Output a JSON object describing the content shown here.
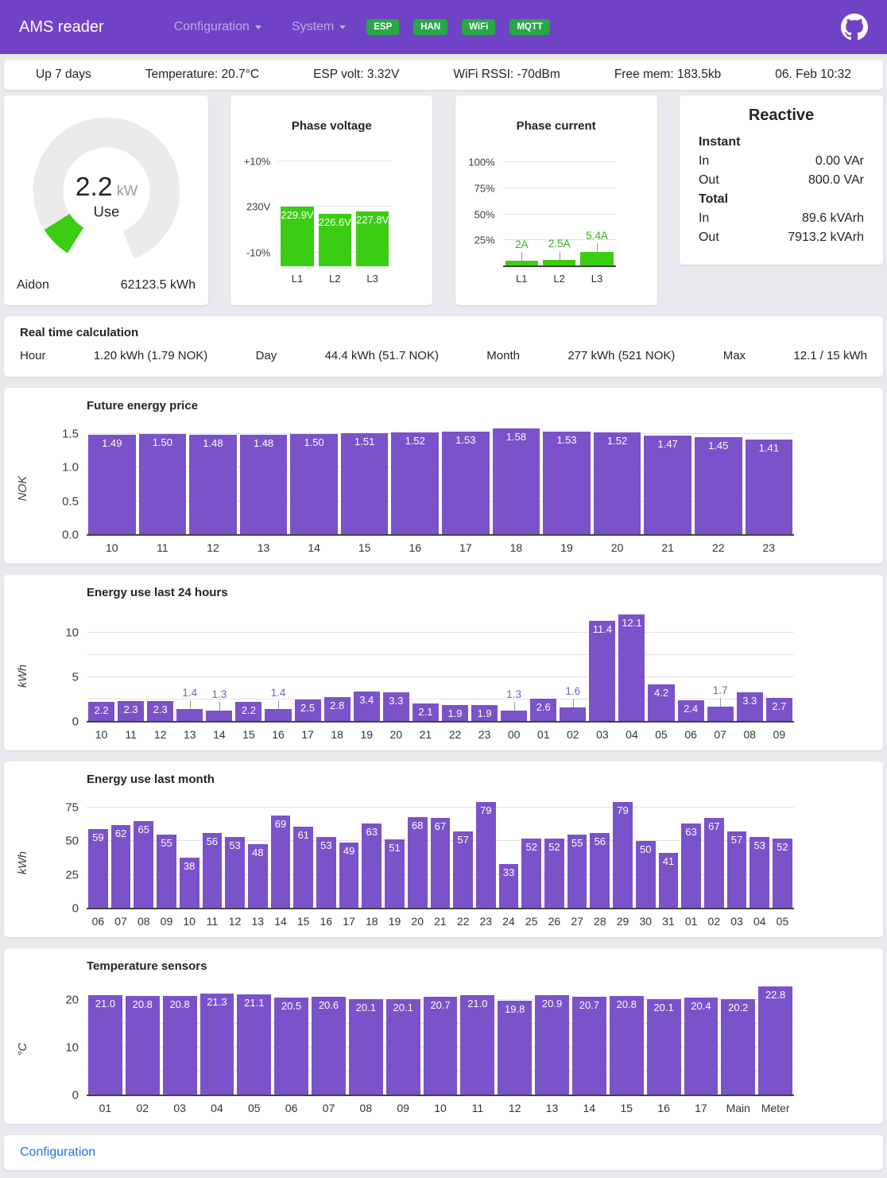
{
  "colors": {
    "header_purple": "#7042c6",
    "bar_purple": "#7a52c9",
    "bar_green": "#3bcd12",
    "badge_green": "#28a745",
    "link_blue": "#1e6ff5",
    "gauge_track": "#ebebeb",
    "label_above_purple": "#6e66b8",
    "label_above_green": "#2db315"
  },
  "header": {
    "title": "AMS reader",
    "nav": [
      {
        "label": "Configuration"
      },
      {
        "label": "System"
      }
    ],
    "badges": [
      {
        "label": "ESP"
      },
      {
        "label": "HAN"
      },
      {
        "label": "WiFi"
      },
      {
        "label": "MQTT"
      }
    ]
  },
  "status_bar": {
    "uptime": "Up 7 days",
    "temperature": "Temperature: 20.7°C",
    "esp_volt": "ESP volt: 3.32V",
    "wifi_rssi": "WiFi RSSI: -70dBm",
    "free_mem": "Free mem: 183.5kb",
    "datetime": "06. Feb 10:32"
  },
  "gauge": {
    "value": "2.2",
    "unit": "kW",
    "label": "Use",
    "meter": "Aidon",
    "total": "62123.5 kWh"
  },
  "reactive": {
    "title": "Reactive",
    "sections": [
      {
        "heading": "Instant",
        "rows": [
          {
            "label": "In",
            "value": "0.00 VAr"
          },
          {
            "label": "Out",
            "value": "800.0 VAr"
          }
        ]
      },
      {
        "heading": "Total",
        "rows": [
          {
            "label": "In",
            "value": "89.6 kVArh"
          },
          {
            "label": "Out",
            "value": "7913.2 kVArh"
          }
        ]
      }
    ]
  },
  "realtime": {
    "title": "Real time calculation",
    "items": [
      {
        "label": "Hour",
        "value": "1.20 kWh (1.79 NOK)"
      },
      {
        "label": "Day",
        "value": "44.4 kWh (51.7 NOK)"
      },
      {
        "label": "Month",
        "value": "277 kWh (521 NOK)"
      },
      {
        "label": "Max",
        "value": "12.1 / 15 kWh"
      }
    ]
  },
  "chart_data": [
    {
      "id": "voltage",
      "type": "bar",
      "title": "Phase voltage",
      "ylabel": "",
      "categories": [
        "L1",
        "L2",
        "L3"
      ],
      "values": [
        229.9,
        226.6,
        227.8
      ],
      "bar_labels": [
        "229.9V",
        "226.6V",
        "227.8V"
      ],
      "ylim": [
        200,
        256
      ],
      "yticks": [
        {
          "v": 253,
          "label": "+10%"
        },
        {
          "v": 230,
          "label": "230V"
        },
        {
          "v": 207,
          "label": "-10%"
        }
      ],
      "gridlines": [
        253,
        230,
        207
      ],
      "bottom_axis": false,
      "color": "bar_green",
      "label_mode": "inside"
    },
    {
      "id": "current",
      "type": "bar",
      "title": "Phase current",
      "ylabel": "",
      "categories": [
        "L1",
        "L2",
        "L3"
      ],
      "values": [
        2,
        2.5,
        5.4
      ],
      "bar_labels": [
        "2A",
        "2.5A",
        "5.4A"
      ],
      "ylim": [
        0,
        107
      ],
      "bar_display": [
        5,
        6.3,
        13.5
      ],
      "yticks": [
        {
          "v": 100,
          "label": "100%"
        },
        {
          "v": 75,
          "label": "75%"
        },
        {
          "v": 50,
          "label": "50%"
        },
        {
          "v": 25,
          "label": "25%"
        }
      ],
      "gridlines": [
        100,
        75,
        50,
        25
      ],
      "bottom_axis": true,
      "color": "bar_green",
      "label_mode": "above",
      "label_above_color": "label_above_green"
    },
    {
      "id": "price",
      "type": "bar",
      "title": "Future energy price",
      "ylabel": "NOK",
      "categories": [
        "10",
        "11",
        "12",
        "13",
        "14",
        "15",
        "16",
        "17",
        "18",
        "19",
        "20",
        "21",
        "22",
        "23"
      ],
      "values": [
        1.49,
        1.5,
        1.48,
        1.48,
        1.5,
        1.51,
        1.52,
        1.53,
        1.58,
        1.53,
        1.52,
        1.47,
        1.45,
        1.41
      ],
      "bar_labels": [
        "1.49",
        "1.50",
        "1.48",
        "1.48",
        "1.50",
        "1.51",
        "1.52",
        "1.53",
        "1.58",
        "1.53",
        "1.52",
        "1.47",
        "1.45",
        "1.41"
      ],
      "ylim": [
        0,
        1.65
      ],
      "yticks": [
        {
          "v": 0,
          "label": "0.0"
        },
        {
          "v": 0.5,
          "label": "0.5"
        },
        {
          "v": 1.0,
          "label": "1.0"
        },
        {
          "v": 1.5,
          "label": "1.5"
        }
      ],
      "gridlines": [
        0.5,
        1.0,
        1.5
      ],
      "bottom_axis": true,
      "color": "bar_purple",
      "label_mode": "inside"
    },
    {
      "id": "last24",
      "type": "bar",
      "title": "Energy use last 24 hours",
      "ylabel": "kWh",
      "categories": [
        "10",
        "11",
        "12",
        "13",
        "14",
        "15",
        "16",
        "17",
        "18",
        "19",
        "20",
        "21",
        "22",
        "23",
        "00",
        "01",
        "02",
        "03",
        "04",
        "05",
        "06",
        "07",
        "08",
        "09"
      ],
      "values": [
        2.2,
        2.3,
        2.3,
        1.4,
        1.3,
        2.2,
        1.4,
        2.5,
        2.8,
        3.4,
        3.3,
        2.1,
        1.9,
        1.9,
        1.3,
        2.6,
        1.6,
        11.4,
        12.1,
        4.2,
        2.4,
        1.7,
        3.3,
        2.7
      ],
      "bar_labels": [
        "2.2",
        "2.3",
        "2.3",
        "1.4",
        "1.3",
        "2.2",
        "1.4",
        "2.5",
        "2.8",
        "3.4",
        "3.3",
        "2.1",
        "1.9",
        "1.9",
        "1.3",
        "2.6",
        "1.6",
        "11.4",
        "12.1",
        "4.2",
        "2.4",
        "1.7",
        "3.3",
        "2.7"
      ],
      "ylim": [
        0,
        12.55
      ],
      "yticks": [
        {
          "v": 0,
          "label": "0"
        },
        {
          "v": 5,
          "label": "5"
        },
        {
          "v": 10,
          "label": "10"
        }
      ],
      "gridlines": [
        2.5,
        5,
        7.5,
        10
      ],
      "bottom_axis": true,
      "color": "bar_purple",
      "label_mode": "auto",
      "label_inside_min": 1.9
    },
    {
      "id": "month",
      "type": "bar",
      "title": "Energy use last month",
      "ylabel": "kWh",
      "categories": [
        "06",
        "07",
        "08",
        "09",
        "10",
        "11",
        "12",
        "13",
        "14",
        "15",
        "16",
        "17",
        "18",
        "19",
        "20",
        "21",
        "22",
        "23",
        "24",
        "25",
        "26",
        "27",
        "28",
        "29",
        "30",
        "31",
        "01",
        "02",
        "03",
        "04",
        "05"
      ],
      "values": [
        59,
        62,
        65,
        55,
        38,
        56,
        53,
        48,
        69,
        61,
        53,
        49,
        63,
        51,
        68,
        67,
        57,
        79,
        33,
        52,
        52,
        55,
        56,
        79,
        50,
        41,
        63,
        67,
        57,
        53,
        52
      ],
      "bar_labels": [
        "59",
        "62",
        "65",
        "55",
        "38",
        "56",
        "53",
        "48",
        "69",
        "61",
        "53",
        "49",
        "63",
        "51",
        "68",
        "67",
        "57",
        "79",
        "33",
        "52",
        "52",
        "55",
        "56",
        "79",
        "50",
        "41",
        "63",
        "67",
        "57",
        "53",
        "52"
      ],
      "ylim": [
        0,
        82.5
      ],
      "yticks": [
        {
          "v": 0,
          "label": "0"
        },
        {
          "v": 25,
          "label": "25"
        },
        {
          "v": 50,
          "label": "50"
        },
        {
          "v": 75,
          "label": "75"
        }
      ],
      "gridlines": [
        25,
        50,
        75
      ],
      "bottom_axis": true,
      "color": "bar_purple",
      "label_mode": "inside"
    },
    {
      "id": "temps",
      "type": "bar",
      "title": "Temperature sensors",
      "ylabel": "°C",
      "categories": [
        "01",
        "02",
        "03",
        "04",
        "05",
        "06",
        "07",
        "08",
        "09",
        "10",
        "11",
        "12",
        "13",
        "14",
        "15",
        "16",
        "17",
        "Main",
        "Meter"
      ],
      "values": [
        21.0,
        20.8,
        20.8,
        21.3,
        21.1,
        20.5,
        20.6,
        20.1,
        20.1,
        20.7,
        21.0,
        19.8,
        20.9,
        20.7,
        20.8,
        20.1,
        20.4,
        20.2,
        22.8
      ],
      "bar_labels": [
        "21.0",
        "20.8",
        "20.8",
        "21.3",
        "21.1",
        "20.5",
        "20.6",
        "20.1",
        "20.1",
        "20.7",
        "21.0",
        "19.8",
        "20.9",
        "20.7",
        "20.8",
        "20.1",
        "20.4",
        "20.2",
        "22.8"
      ],
      "ylim": [
        0,
        23.3
      ],
      "yticks": [
        {
          "v": 0,
          "label": "0"
        },
        {
          "v": 10,
          "label": "10"
        },
        {
          "v": 20,
          "label": "20"
        }
      ],
      "gridlines": [
        5,
        10,
        15,
        20
      ],
      "bottom_axis": true,
      "color": "bar_purple",
      "label_mode": "inside"
    }
  ],
  "footer": {
    "link": "Configuration"
  }
}
